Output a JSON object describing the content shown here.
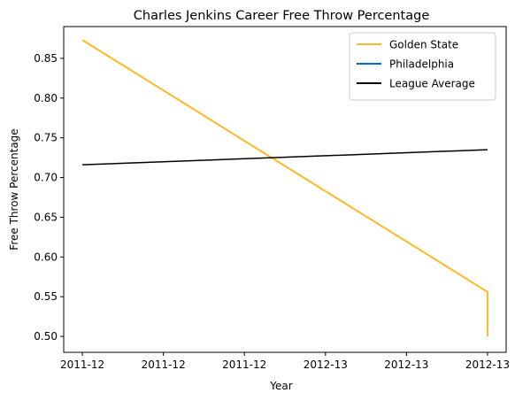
{
  "chart_data": {
    "type": "line",
    "title": "Charles Jenkins  Career Free Throw Percentage",
    "xlabel": "Year",
    "ylabel": "Free Throw Percentage",
    "xlim": [
      0,
      5
    ],
    "ylim": [
      0.48,
      0.89
    ],
    "x_ticks": [
      {
        "value": 0,
        "label": "2011-12"
      },
      {
        "value": 1,
        "label": "2011-12"
      },
      {
        "value": 2,
        "label": "2011-12"
      },
      {
        "value": 3,
        "label": "2012-13"
      },
      {
        "value": 4,
        "label": "2012-13"
      },
      {
        "value": 5,
        "label": "2012-13"
      }
    ],
    "y_ticks": [
      {
        "value": 0.5,
        "label": "0.50"
      },
      {
        "value": 0.55,
        "label": "0.55"
      },
      {
        "value": 0.6,
        "label": "0.60"
      },
      {
        "value": 0.65,
        "label": "0.65"
      },
      {
        "value": 0.7,
        "label": "0.70"
      },
      {
        "value": 0.75,
        "label": "0.75"
      },
      {
        "value": 0.8,
        "label": "0.80"
      },
      {
        "value": 0.85,
        "label": "0.85"
      }
    ],
    "grid": false,
    "legend_position": "top-right",
    "series": [
      {
        "name": "Golden State",
        "color": "#FDB927",
        "x": [
          0,
          5,
          5
        ],
        "y": [
          0.873,
          0.556,
          0.5
        ]
      },
      {
        "name": "Philadelphia",
        "color": "#006BB6",
        "x": [],
        "y": []
      },
      {
        "name": "League Average",
        "color": "#000000",
        "x": [
          0,
          5
        ],
        "y": [
          0.716,
          0.735
        ]
      }
    ]
  }
}
